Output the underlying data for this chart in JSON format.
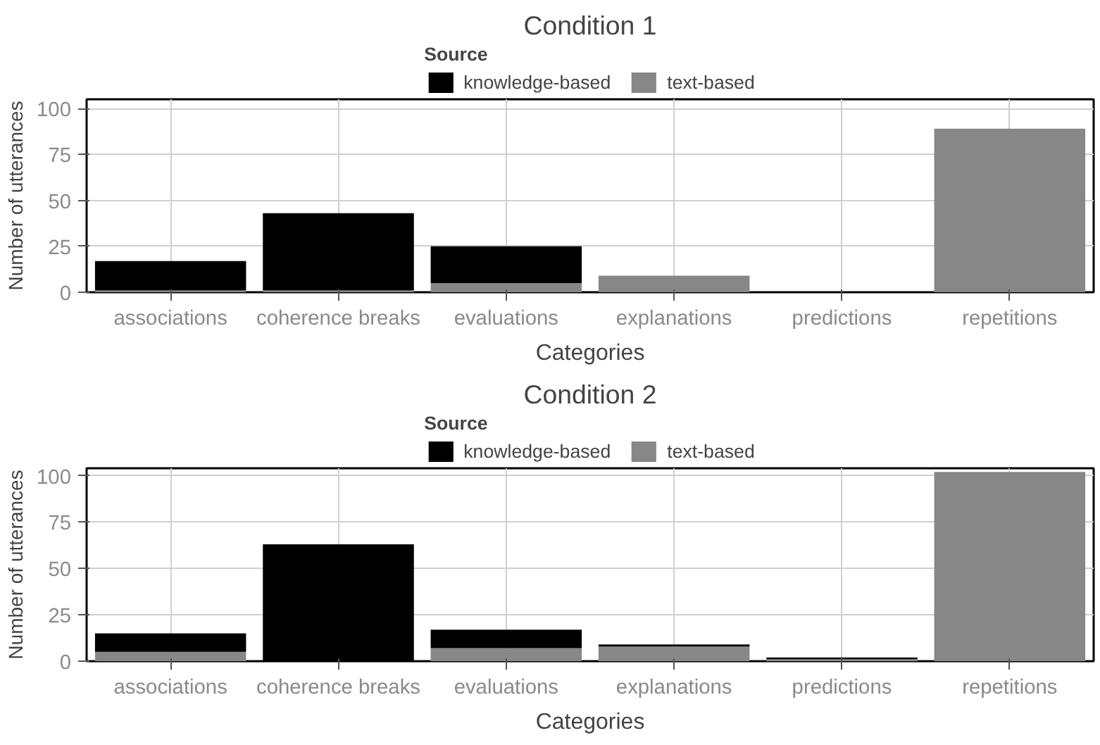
{
  "chart_data": [
    {
      "type": "bar",
      "title": "Condition 1",
      "xlabel": "Categories",
      "ylabel": "Number of utterances",
      "legend_title": "Source",
      "legend": "top",
      "grid": true,
      "stacked": true,
      "categories": [
        "associations",
        "coherence breaks",
        "evaluations",
        "explanations",
        "predictions",
        "repetitions"
      ],
      "ylim": [
        0,
        105
      ],
      "yticks": [
        0,
        25,
        50,
        75,
        100
      ],
      "series": [
        {
          "name": "text-based",
          "color": "#878787",
          "values": [
            1,
            1,
            5,
            9,
            0,
            89
          ]
        },
        {
          "name": "knowledge-based",
          "color": "#000000",
          "values": [
            16,
            42,
            20,
            0,
            0,
            0
          ]
        }
      ]
    },
    {
      "type": "bar",
      "title": "Condition 2",
      "xlabel": "Categories",
      "ylabel": "Number of utterances",
      "legend_title": "Source",
      "legend": "top",
      "grid": true,
      "stacked": true,
      "categories": [
        "associations",
        "coherence breaks",
        "evaluations",
        "explanations",
        "predictions",
        "repetitions"
      ],
      "ylim": [
        0,
        104
      ],
      "yticks": [
        0,
        25,
        50,
        75,
        100
      ],
      "series": [
        {
          "name": "text-based",
          "color": "#878787",
          "values": [
            5,
            0,
            7,
            8,
            1,
            102
          ]
        },
        {
          "name": "knowledge-based",
          "color": "#000000",
          "values": [
            10,
            63,
            10,
            1,
            1,
            0
          ]
        }
      ]
    }
  ]
}
